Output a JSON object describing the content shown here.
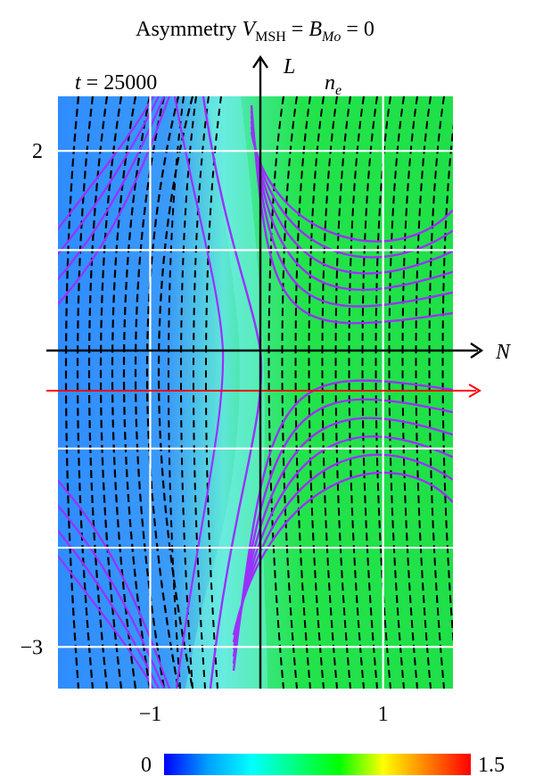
{
  "chart_data": {
    "type": "heatmap",
    "title_parts": {
      "prefix": "Asymmetry ",
      "v": "V",
      "v_sub": "MSH",
      "eq1": " = ",
      "b": "B",
      "b_sub": "Mo",
      "eq2": " = 0"
    },
    "time_label": {
      "var": "t",
      "rest": " = 25000"
    },
    "quantity_label": {
      "var": "n",
      "sub": "e"
    },
    "axis_labels": {
      "vertical": "L",
      "horizontal": "N"
    },
    "x_ticks": [
      {
        "value": -1,
        "label": "−1"
      },
      {
        "value": 1,
        "label": "1"
      }
    ],
    "y_ticks": [
      {
        "value": 2,
        "label": "2"
      },
      {
        "value": -3,
        "label": "−3"
      }
    ],
    "xlim": [
      -1.8,
      1.6
    ],
    "ylim": [
      -3.42,
      2.55
    ],
    "colorbar": {
      "min_label": "0",
      "max_label": "1.5",
      "range": [
        0,
        1.5
      ],
      "colors": [
        "#0000ff",
        "#00a0ff",
        "#00ffff",
        "#00ff80",
        "#00ff00",
        "#ffff00",
        "#ff8000",
        "#ff0000"
      ]
    },
    "field_levels": {
      "left_panel": 0.37,
      "ridge": 0.6,
      "right_panel": 0.7
    },
    "grid": true,
    "cut_line_L": -0.5,
    "cut_line_color": "#ff0000",
    "contour_colors": {
      "black": "#000000",
      "purple": "#9b30ff"
    }
  }
}
